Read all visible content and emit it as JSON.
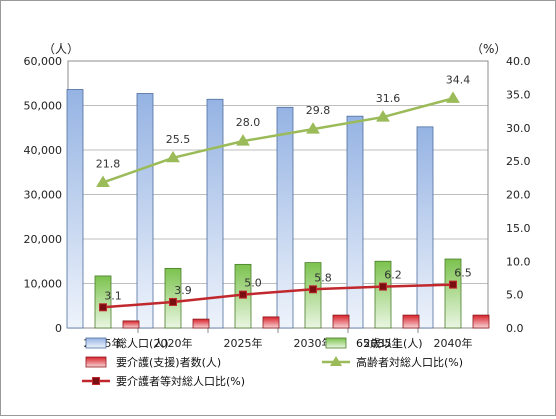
{
  "chart_data": {
    "type": "bar",
    "categories": [
      "2015年",
      "2020年",
      "2025年",
      "2030年",
      "2035年",
      "2040年"
    ],
    "y_left_unit": "（人）",
    "y_right_unit": "（%）",
    "ylim_left": [
      0,
      60000
    ],
    "ylim_right": [
      0,
      40.0
    ],
    "y_left_ticks": [
      "0",
      "10,000",
      "20,000",
      "30,000",
      "40,000",
      "50,000",
      "60,000"
    ],
    "y_right_ticks": [
      "0.0",
      "5.0",
      "10.0",
      "15.0",
      "20.0",
      "25.0",
      "30.0",
      "35.0",
      "40.0"
    ],
    "grid": true,
    "legend_position": "bottom",
    "series": [
      {
        "name": "総人口(人)",
        "kind": "bar",
        "axis": "left",
        "color": "#a9c4ea",
        "values": [
          53600,
          52700,
          51400,
          49600,
          47600,
          45200
        ]
      },
      {
        "name": "65歳以上(人)",
        "kind": "bar",
        "axis": "left",
        "color": "#8fd16a",
        "values": [
          11700,
          13400,
          14300,
          14700,
          15000,
          15500
        ]
      },
      {
        "name": "要介護(支援)者数(人)",
        "kind": "bar",
        "axis": "left",
        "color": "#e0303a",
        "values": [
          1600,
          2000,
          2500,
          2900,
          2900,
          2900
        ]
      },
      {
        "name": "高齢者対総人口比(%)",
        "kind": "line",
        "axis": "right",
        "color": "#9bbb59",
        "marker": "triangle",
        "values": [
          21.8,
          25.5,
          28.0,
          29.8,
          31.6,
          34.4
        ],
        "labels": [
          "21.8",
          "25.5",
          "28.0",
          "29.8",
          "31.6",
          "34.4"
        ]
      },
      {
        "name": "要介護者等対総人口比(%)",
        "kind": "line",
        "axis": "right",
        "color": "#c0282e",
        "marker": "square",
        "values": [
          3.1,
          3.9,
          5.0,
          5.8,
          6.2,
          6.5
        ],
        "labels": [
          "3.1",
          "3.9",
          "5.0",
          "5.8",
          "6.2",
          "6.5"
        ]
      }
    ]
  }
}
